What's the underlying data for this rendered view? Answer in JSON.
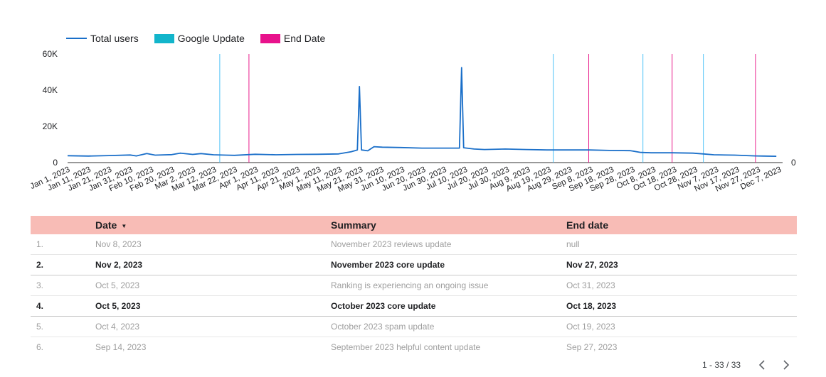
{
  "colors": {
    "total_users": "#1a6fc9",
    "google_update": "#4fc3f7",
    "end_date": "#e91e8c",
    "header_bg": "#f8bcb6",
    "legend_google_box": "#12b5cb",
    "legend_end_box": "#e8128c"
  },
  "legend": [
    {
      "label": "Total users",
      "icon": "line-swatch"
    },
    {
      "label": "Google Update",
      "icon": "box-swatch"
    },
    {
      "label": "End Date",
      "icon": "box-swatch"
    }
  ],
  "chart_data": {
    "type": "line",
    "title": "",
    "xlabel": "",
    "ylabel": "",
    "ylim": [
      0,
      60000
    ],
    "yticks": [
      "0",
      "20K",
      "40K",
      "60K"
    ],
    "right_axis_tick": "0",
    "x_tick_labels": [
      "Jan 1, 2023",
      "Jan 11, 2023",
      "Jan 21, 2023",
      "Jan 31, 2023",
      "Feb 10, 2023",
      "Feb 20, 2023",
      "Mar 2, 2023",
      "Mar 12, 2023",
      "Mar 22, 2023",
      "Apr 1, 2023",
      "Apr 11, 2023",
      "Apr 21, 2023",
      "May 1, 2023",
      "May 11, 2023",
      "May 21, 2023",
      "May 31, 2023",
      "Jun 10, 2023",
      "Jun 20, 2023",
      "Jun 30, 2023",
      "Jul 10, 2023",
      "Jul 20, 2023",
      "Jul 30, 2023",
      "Aug 9, 2023",
      "Aug 19, 2023",
      "Aug 29, 2023",
      "Sep 8, 2023",
      "Sep 18, 2023",
      "Sep 28, 2023",
      "Oct 8, 2023",
      "Oct 18, 2023",
      "Oct 28, 2023",
      "Nov 7, 2023",
      "Nov 17, 2023",
      "Nov 27, 2023",
      "Dec 7, 2023"
    ],
    "x_range": [
      "2023-01-01",
      "2023-12-10"
    ],
    "series": [
      {
        "name": "Total users",
        "points": [
          [
            "2023-01-01",
            3800
          ],
          [
            "2023-01-11",
            3600
          ],
          [
            "2023-01-21",
            3900
          ],
          [
            "2023-01-31",
            4200
          ],
          [
            "2023-02-03",
            3700
          ],
          [
            "2023-02-08",
            5000
          ],
          [
            "2023-02-12",
            4100
          ],
          [
            "2023-02-20",
            4400
          ],
          [
            "2023-02-24",
            5200
          ],
          [
            "2023-03-02",
            4500
          ],
          [
            "2023-03-06",
            5000
          ],
          [
            "2023-03-12",
            4300
          ],
          [
            "2023-03-18",
            4100
          ],
          [
            "2023-03-22",
            4000
          ],
          [
            "2023-04-01",
            4600
          ],
          [
            "2023-04-11",
            4300
          ],
          [
            "2023-04-21",
            4500
          ],
          [
            "2023-05-01",
            4600
          ],
          [
            "2023-05-11",
            4800
          ],
          [
            "2023-05-17",
            6000
          ],
          [
            "2023-05-20",
            7000
          ],
          [
            "2023-05-21",
            42000
          ],
          [
            "2023-05-22",
            7000
          ],
          [
            "2023-05-25",
            6500
          ],
          [
            "2023-05-28",
            8800
          ],
          [
            "2023-06-01",
            8500
          ],
          [
            "2023-06-10",
            8300
          ],
          [
            "2023-06-20",
            8000
          ],
          [
            "2023-06-30",
            8000
          ],
          [
            "2023-07-08",
            8000
          ],
          [
            "2023-07-09",
            52500
          ],
          [
            "2023-07-10",
            8200
          ],
          [
            "2023-07-15",
            7500
          ],
          [
            "2023-07-20",
            7200
          ],
          [
            "2023-07-30",
            7500
          ],
          [
            "2023-08-09",
            7200
          ],
          [
            "2023-08-19",
            7000
          ],
          [
            "2023-08-29",
            7000
          ],
          [
            "2023-09-08",
            7000
          ],
          [
            "2023-09-18",
            6700
          ],
          [
            "2023-09-28",
            6600
          ],
          [
            "2023-10-03",
            5600
          ],
          [
            "2023-10-08",
            5400
          ],
          [
            "2023-10-18",
            5400
          ],
          [
            "2023-10-28",
            5200
          ],
          [
            "2023-11-02",
            4800
          ],
          [
            "2023-11-07",
            4300
          ],
          [
            "2023-11-17",
            4100
          ],
          [
            "2023-11-27",
            3700
          ],
          [
            "2023-12-01",
            3600
          ],
          [
            "2023-12-07",
            3500
          ]
        ]
      }
    ],
    "google_update_dates": [
      "2023-03-15",
      "2023-08-22",
      "2023-10-04",
      "2023-11-02"
    ],
    "end_date_dates": [
      "2023-03-29",
      "2023-09-08",
      "2023-10-18",
      "2023-11-27"
    ]
  },
  "table": {
    "headers": {
      "index": "",
      "date": "Date",
      "summary": "Summary",
      "end_date": "End date"
    },
    "sort_indicator": "▼",
    "rows": [
      {
        "index": "1.",
        "date": "Nov 8, 2023",
        "summary": "November 2023 reviews update",
        "end_date": "null",
        "bold": false
      },
      {
        "index": "2.",
        "date": "Nov 2, 2023",
        "summary": "November 2023 core update",
        "end_date": "Nov 27, 2023",
        "bold": true
      },
      {
        "index": "3.",
        "date": "Oct 5, 2023",
        "summary": "Ranking is experiencing an ongoing issue",
        "end_date": "Oct 31, 2023",
        "bold": false
      },
      {
        "index": "4.",
        "date": "Oct 5, 2023",
        "summary": "October 2023 core update",
        "end_date": "Oct 18, 2023",
        "bold": true
      },
      {
        "index": "5.",
        "date": "Oct 4, 2023",
        "summary": "October 2023 spam update",
        "end_date": "Oct 19, 2023",
        "bold": false
      },
      {
        "index": "6.",
        "date": "Sep 14, 2023",
        "summary": "September 2023 helpful content update",
        "end_date": "Sep 27, 2023",
        "bold": false
      }
    ]
  },
  "pager": {
    "text": "1 - 33 / 33",
    "prev_icon": "chevron-left-icon",
    "next_icon": "chevron-right-icon"
  }
}
